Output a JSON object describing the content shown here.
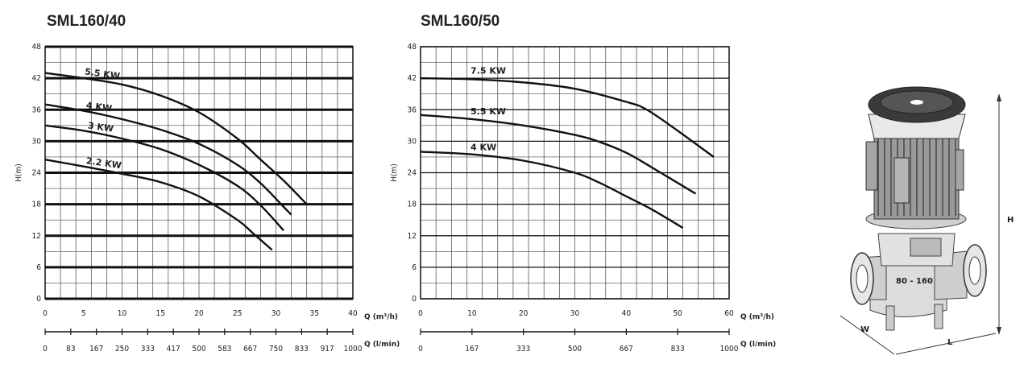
{
  "chart_data": [
    {
      "type": "line",
      "title": "SML160/40",
      "ylabel": "H(m)",
      "xlabel": "Q (m³/h)",
      "x2label": "Q (l/min)",
      "xlim": [
        0,
        40
      ],
      "ylim": [
        0,
        48
      ],
      "xticks": [
        0,
        5,
        10,
        15,
        20,
        25,
        30,
        35,
        40
      ],
      "yticks": [
        0,
        6,
        12,
        18,
        24,
        30,
        36,
        42,
        48
      ],
      "x2ticks": [
        "0",
        "83",
        "167",
        "250",
        "333",
        "417",
        "500",
        "583",
        "667",
        "750",
        "833",
        "917",
        "1000"
      ],
      "grid": true,
      "series": [
        {
          "name": "5.5 KW",
          "x": [
            0,
            5,
            10,
            15,
            20,
            25,
            28,
            31,
            34
          ],
          "values": [
            43,
            42,
            40.8,
            38.7,
            35.5,
            30.5,
            26.5,
            22.5,
            18
          ]
        },
        {
          "name": "4 KW",
          "x": [
            0,
            5,
            10,
            15,
            20,
            25,
            28,
            31,
            32
          ],
          "values": [
            37,
            35.8,
            34.2,
            32.2,
            29.5,
            25.5,
            22,
            17.5,
            16
          ]
        },
        {
          "name": "3 KW",
          "x": [
            0,
            5,
            10,
            15,
            20,
            25,
            28,
            31
          ],
          "values": [
            33,
            32,
            30.5,
            28.5,
            25.5,
            21.5,
            17.8,
            13
          ]
        },
        {
          "name": "2.2 KW",
          "x": [
            0,
            5,
            10,
            15,
            20,
            25,
            27,
            29.5
          ],
          "values": [
            26.5,
            25.2,
            23.8,
            22.2,
            19.5,
            15,
            12.5,
            9.3
          ]
        }
      ]
    },
    {
      "type": "line",
      "title": "SML160/50",
      "ylabel": "H(m)",
      "xlabel": "Q (m³/h)",
      "x2label": "Q (l/min)",
      "xlim": [
        0,
        60
      ],
      "ylim": [
        0,
        48
      ],
      "xticks": [
        0,
        10,
        20,
        30,
        40,
        50,
        60
      ],
      "yticks": [
        0,
        6,
        12,
        18,
        24,
        30,
        36,
        42,
        48
      ],
      "x2ticks": [
        "0",
        "167",
        "333",
        "500",
        "667",
        "833",
        "1000"
      ],
      "grid": true,
      "series": [
        {
          "name": "7.5 KW",
          "x": [
            0,
            10,
            20,
            30,
            40,
            44,
            50,
            57
          ],
          "values": [
            42,
            41.8,
            41.2,
            40,
            37.5,
            36,
            32,
            27
          ]
        },
        {
          "name": "5.5 KW",
          "x": [
            0,
            10,
            20,
            30,
            35,
            40,
            45,
            53.5
          ],
          "values": [
            35,
            34.2,
            33,
            31.2,
            29.8,
            27.8,
            25,
            20
          ]
        },
        {
          "name": "4 KW",
          "x": [
            0,
            10,
            20,
            30,
            35,
            40,
            45,
            51
          ],
          "values": [
            28,
            27.5,
            26.3,
            24,
            22,
            19.5,
            17,
            13.5
          ]
        }
      ]
    }
  ],
  "pump": {
    "dim_h": "H",
    "dim_w": "W",
    "dim_l": "L",
    "nameplate": "80 - 160"
  }
}
